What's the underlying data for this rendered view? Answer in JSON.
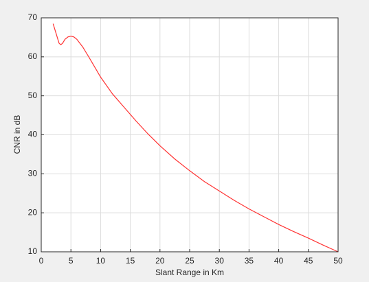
{
  "chart_data": {
    "type": "line",
    "xlabel": "Slant Range in Km",
    "ylabel": "CNR in dB",
    "x": [
      2,
      2.5,
      3,
      3.3,
      3.6,
      4,
      4.5,
      5,
      5.5,
      6,
      7,
      8,
      9,
      10,
      12,
      14,
      16,
      18,
      20,
      22.5,
      25,
      27.5,
      30,
      32.5,
      35,
      37.5,
      40,
      42.5,
      45,
      47.5,
      50
    ],
    "series": [
      {
        "color": "#ff3333",
        "values": [
          68.5,
          66,
          63.5,
          63.1,
          63.5,
          64.5,
          65.1,
          65.3,
          65.1,
          64.5,
          62.5,
          60,
          57.4,
          54.8,
          50.5,
          47,
          43.5,
          40.2,
          37.2,
          33.8,
          30.8,
          28,
          25.6,
          23.2,
          21,
          19,
          17,
          15.2,
          13.5,
          11.7,
          10
        ]
      }
    ],
    "xlim": [
      0,
      50
    ],
    "xticks": [
      0,
      5,
      10,
      15,
      20,
      25,
      30,
      35,
      40,
      45,
      50
    ],
    "ylim": [
      10,
      70
    ],
    "yticks": [
      10,
      20,
      30,
      40,
      50,
      60,
      70
    ],
    "grid": true
  }
}
